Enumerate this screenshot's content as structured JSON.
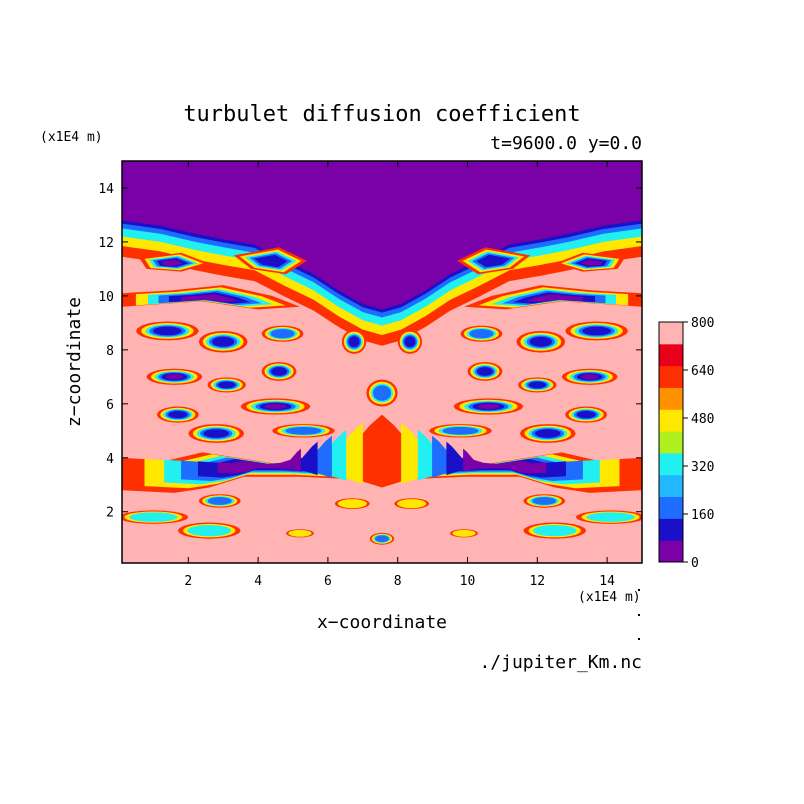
{
  "chart_data": {
    "type": "heatmap",
    "title": "turbulet diffusion coefficient",
    "subtitle": "t=9600.0 y=0.0",
    "xlabel": "x−coordinate",
    "ylabel": "z−coordinate",
    "x_unit": "(x1E4 m)",
    "y_unit": "(x1E4 m)",
    "xlim": [
      0.1,
      15.0
    ],
    "ylim": [
      0.1,
      15.0
    ],
    "x_ticks": [
      "2",
      "4",
      "6",
      "8",
      "10",
      "12",
      "14"
    ],
    "x_tick_values": [
      2,
      4,
      6,
      8,
      10,
      12,
      14
    ],
    "y_ticks": [
      "2",
      "4",
      "6",
      "8",
      "10",
      "12",
      "14"
    ],
    "y_tick_values": [
      2,
      4,
      6,
      8,
      10,
      12,
      14
    ],
    "colorbar": {
      "min": 0,
      "max": 800,
      "step": 80,
      "tick_labels": [
        "0",
        "160",
        "320",
        "480",
        "640",
        "800"
      ],
      "tick_values": [
        0,
        160,
        320,
        480,
        640,
        800
      ],
      "colors": [
        "#7a00a8",
        "#1a10c8",
        "#1f6dff",
        "#22b8ff",
        "#22f0f0",
        "#b0f020",
        "#ffe800",
        "#ff9000",
        "#ff3000",
        "#e8001a",
        "#ffb3b3"
      ]
    },
    "field_regions": {
      "upper_layer_low": {
        "z_from": 12.8,
        "z_to": 15.0,
        "value": 0
      },
      "background_high": {
        "value": 800
      },
      "symmetry_axis_x": 7.55
    },
    "footer": "./jupiter_Km.nc"
  }
}
